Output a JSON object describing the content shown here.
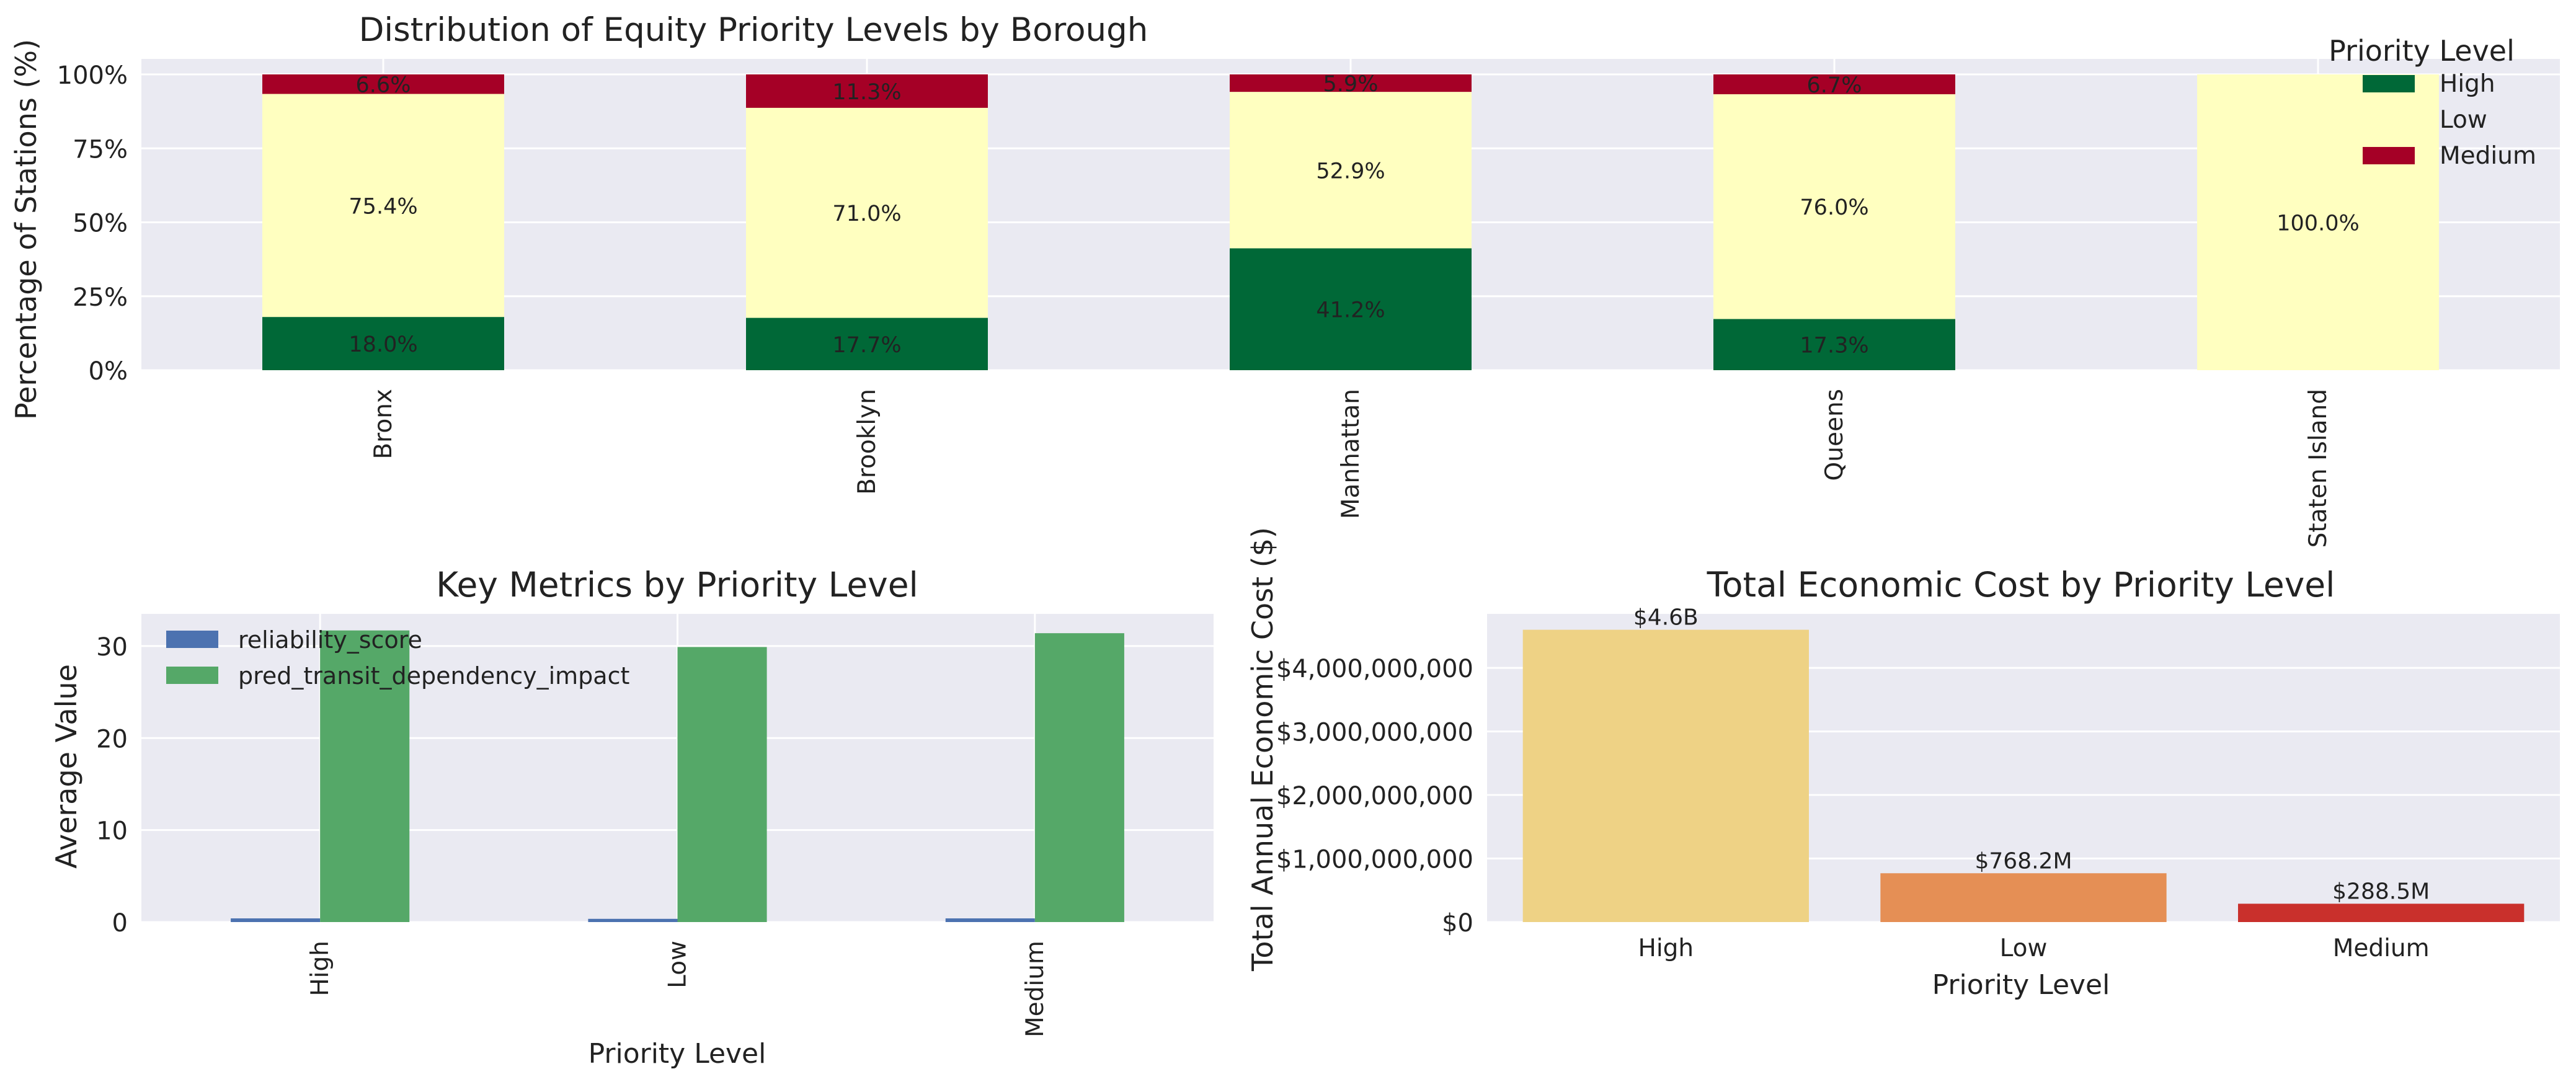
{
  "chart_data": [
    {
      "type": "bar",
      "stacked": true,
      "percent": true,
      "title": "Distribution of Equity Priority Levels by Borough",
      "xlabel": "",
      "ylabel": "Percentage of Stations (%)",
      "ylim": [
        0,
        100
      ],
      "yticks": [
        "0%",
        "25%",
        "50%",
        "75%",
        "100%"
      ],
      "categories": [
        "Bronx",
        "Brooklyn",
        "Manhattan",
        "Queens",
        "Staten Island"
      ],
      "series": [
        {
          "name": "High",
          "color": "#006837",
          "values": [
            18.0,
            17.7,
            41.2,
            17.3,
            0
          ],
          "labels": [
            "18.0%",
            "17.7%",
            "41.2%",
            "17.3%",
            ""
          ]
        },
        {
          "name": "Low",
          "color": "#ffffc0",
          "values": [
            75.4,
            71.0,
            52.9,
            76.0,
            100.0
          ],
          "labels": [
            "75.4%",
            "71.0%",
            "52.9%",
            "76.0%",
            "100.0%"
          ]
        },
        {
          "name": "Medium",
          "color": "#a50026",
          "values": [
            6.6,
            11.3,
            5.9,
            6.7,
            0
          ],
          "labels": [
            "6.6%",
            "11.3%",
            "5.9%",
            "6.7%",
            ""
          ]
        }
      ],
      "legend": {
        "title": "Priority Level",
        "placement": "top-right"
      },
      "grid": true
    },
    {
      "type": "bar",
      "title": "Key Metrics by Priority Level",
      "xlabel": "Priority Level",
      "ylabel": "Average Value",
      "ylim": [
        0,
        33.5
      ],
      "yticks": [
        0,
        10,
        20,
        30
      ],
      "categories": [
        "High",
        "Low",
        "Medium"
      ],
      "series": [
        {
          "name": "reliability_score",
          "color": "#4c72b0",
          "values": [
            0.4,
            0.35,
            0.4
          ]
        },
        {
          "name": "pred_transit_dependency_impact",
          "color": "#55a868",
          "values": [
            31.7,
            29.9,
            31.4
          ]
        }
      ],
      "legend": {
        "placement": "top-left"
      },
      "grid": true
    },
    {
      "type": "bar",
      "title": "Total Economic Cost by Priority Level",
      "xlabel": "Priority Level",
      "ylabel": "Total Annual Economic Cost ($)",
      "ylim": [
        0,
        4850000000
      ],
      "yticks": [
        "$0",
        "$1,000,000,000",
        "$2,000,000,000",
        "$3,000,000,000",
        "$4,000,000,000"
      ],
      "categories": [
        "High",
        "Low",
        "Medium"
      ],
      "values": [
        4600000000,
        768200000,
        288500000
      ],
      "labels": [
        "$4.6B",
        "$768.2M",
        "$288.5M"
      ],
      "colors": [
        "#eed285",
        "#e58f55",
        "#c9302c"
      ],
      "grid": true
    }
  ]
}
